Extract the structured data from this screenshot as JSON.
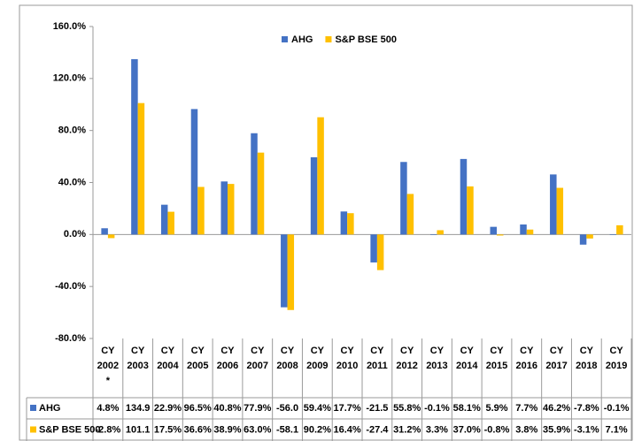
{
  "chart_data": {
    "type": "bar",
    "categories": [
      [
        "CY",
        "2002",
        "*"
      ],
      [
        "CY",
        "2003"
      ],
      [
        "CY",
        "2004"
      ],
      [
        "CY",
        "2005"
      ],
      [
        "CY",
        "2006"
      ],
      [
        "CY",
        "2007"
      ],
      [
        "CY",
        "2008"
      ],
      [
        "CY",
        "2009"
      ],
      [
        "CY",
        "2010"
      ],
      [
        "CY",
        "2011"
      ],
      [
        "CY",
        "2012"
      ],
      [
        "CY",
        "2013"
      ],
      [
        "CY",
        "2014"
      ],
      [
        "CY",
        "2015"
      ],
      [
        "CY",
        "2016"
      ],
      [
        "CY",
        "2017"
      ],
      [
        "CY",
        "2018"
      ],
      [
        "CY",
        "2019"
      ]
    ],
    "series": [
      {
        "name": "AHG",
        "color": "#4472c4",
        "values": [
          4.8,
          134.9,
          22.9,
          96.5,
          40.8,
          77.9,
          -56.0,
          59.4,
          17.7,
          -21.5,
          55.8,
          -0.1,
          58.1,
          5.9,
          7.7,
          46.2,
          -7.8,
          -0.1
        ],
        "value_labels": [
          "4.8%",
          "134.9",
          "22.9%",
          "96.5%",
          "40.8%",
          "77.9%",
          "-56.0",
          "59.4%",
          "17.7%",
          "-21.5",
          "55.8%",
          "-0.1%",
          "58.1%",
          "5.9%",
          "7.7%",
          "46.2%",
          "-7.8%",
          "-0.1%"
        ]
      },
      {
        "name": "S&P BSE 500",
        "color": "#ffc000",
        "values": [
          -2.8,
          101.1,
          17.5,
          36.6,
          38.9,
          63.0,
          -58.1,
          90.2,
          16.4,
          -27.4,
          31.2,
          3.3,
          37.0,
          -0.8,
          3.8,
          35.9,
          -3.1,
          7.1
        ],
        "value_labels": [
          "-2.8%",
          "101.1",
          "17.5%",
          "36.6%",
          "38.9%",
          "63.0%",
          "-58.1",
          "90.2%",
          "16.4%",
          "-27.4",
          "31.2%",
          "3.3%",
          "37.0%",
          "-0.8%",
          "3.8%",
          "35.9%",
          "-3.1%",
          "7.1%"
        ]
      }
    ],
    "ylim": [
      -80,
      160
    ],
    "yticks": [
      {
        "value": -80,
        "label": "-80.0%"
      },
      {
        "value": -40,
        "label": "-40.0%"
      },
      {
        "value": 0,
        "label": "0.0%"
      },
      {
        "value": 40,
        "label": "40.0%"
      },
      {
        "value": 80,
        "label": "80.0%"
      },
      {
        "value": 120,
        "label": "120.0%"
      },
      {
        "value": 160,
        "label": "160.0%"
      }
    ],
    "legend": "top",
    "grid": false,
    "data_table": true
  }
}
